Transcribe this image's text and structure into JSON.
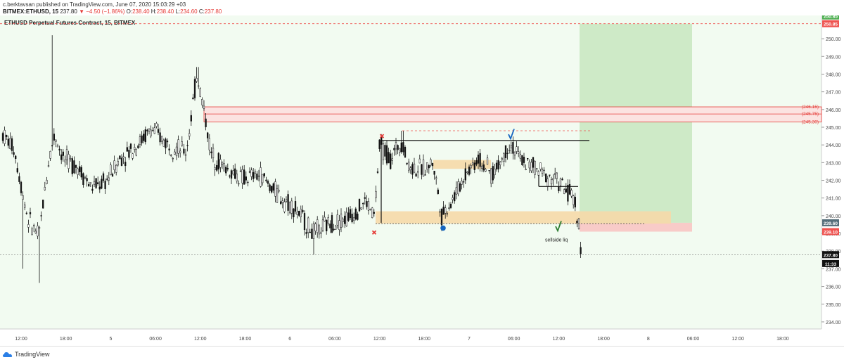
{
  "header": {
    "publisher_line": "c.berktavsan published on TradingView.com, June 07, 2020 15:03:29 +03",
    "symbol": "BITMEX:ETHUSD, 15",
    "last": "237.80",
    "change": "−4.50 (−1.86%)",
    "o_label": "O:",
    "o": "238.40",
    "h_label": "H:",
    "h": "238.40",
    "l_label": "L:",
    "l": "234.60",
    "c_label": "C:",
    "c": "237.80",
    "change_color": "#e53935"
  },
  "chart_data": {
    "type": "candlestick",
    "title": "ETHUSD Perpetual Futures Contract, 15, BITMEX",
    "ylim": [
      233.6,
      250.6
    ],
    "y_ticks": [
      "250.00",
      "249.00",
      "248.00",
      "247.00",
      "246.00",
      "245.00",
      "244.00",
      "243.00",
      "242.00",
      "241.00",
      "240.00",
      "239.00",
      "238.00",
      "237.00",
      "236.00",
      "235.00",
      "234.00"
    ],
    "x_ticks": [
      "12:00",
      "18:00",
      "5",
      "06:00",
      "12:00",
      "18:00",
      "6",
      "06:00",
      "12:00",
      "18:00",
      "7",
      "06:00",
      "12:00",
      "18:00",
      "8",
      "06:00",
      "12:00",
      "18:00"
    ],
    "price_labels": [
      {
        "text": "250.85",
        "value": 250.85,
        "color": "#ef5350"
      },
      {
        "text": "239.60",
        "value": 239.6,
        "color": "#546e7a"
      },
      {
        "text": "239.10",
        "value": 239.1,
        "color": "#ef5350"
      },
      {
        "text": "237.80",
        "value": 237.8,
        "color": "#111111"
      },
      {
        "text": "11:33",
        "value": 237.3,
        "color": "#111111"
      }
    ],
    "zone_labels": [
      "(246.15)",
      "(245.75)",
      "(245.30)"
    ],
    "annotation": "sellside liq",
    "key_levels": {
      "target": 250.85,
      "entry": 239.6,
      "stop": 239.1,
      "last": 237.8,
      "supply_top": 246.15,
      "supply_mid": 245.75,
      "supply_bottom": 245.3
    },
    "colors": {
      "up": "#111111",
      "down": "#111111",
      "bg": "#f2fbf1",
      "profit": "#c8e6c0",
      "loss": "#f8cbc8",
      "supply": "#e53935",
      "demand": "#f6d9a8"
    }
  },
  "footer": {
    "brand": "TradingView"
  }
}
